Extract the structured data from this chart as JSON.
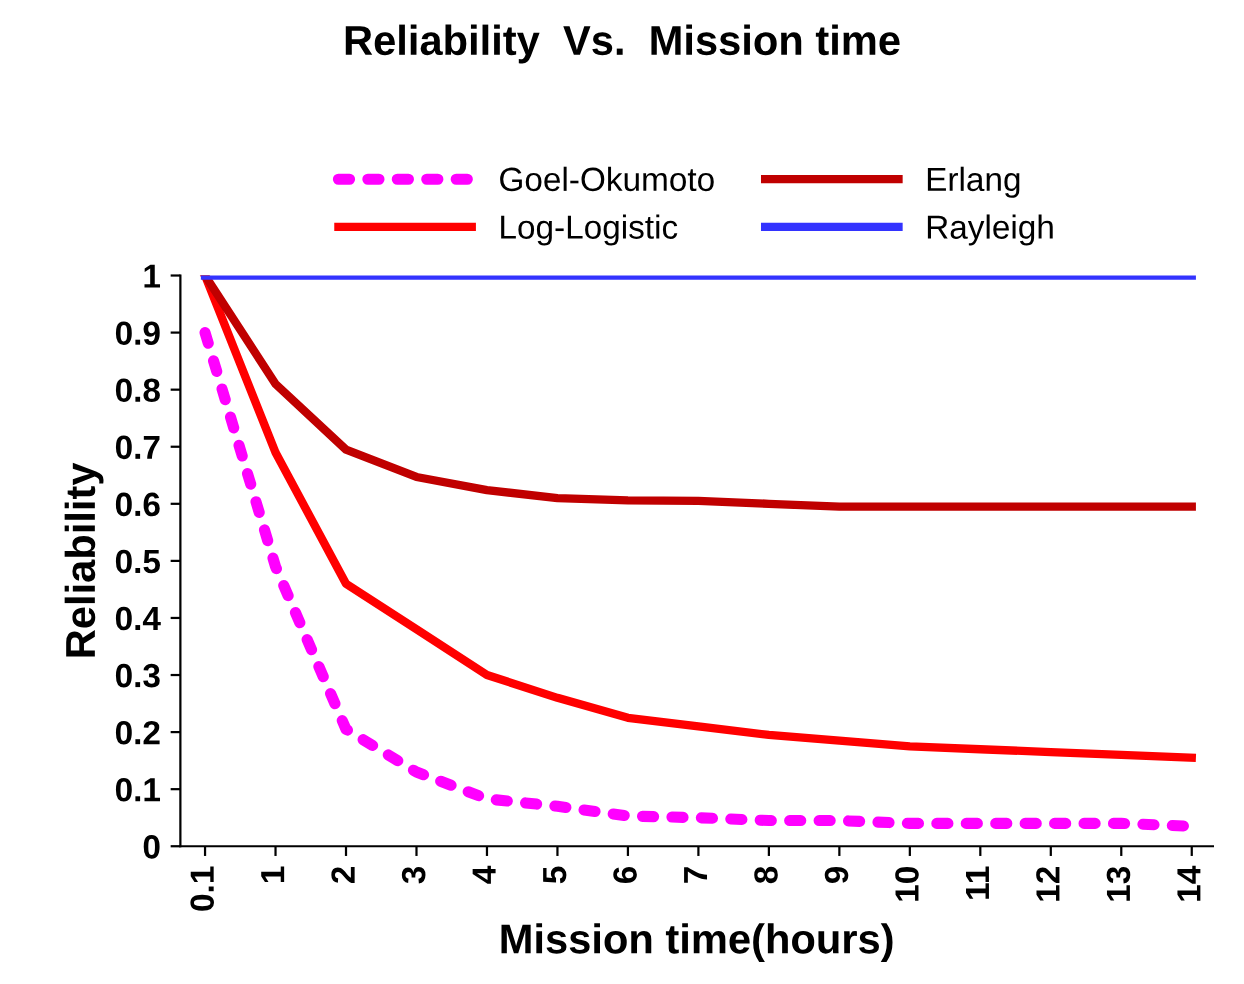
{
  "chart_data": {
    "type": "line",
    "title": "Reliability  Vs.  Mission time",
    "xlabel": "Mission time(hours)",
    "ylabel": "Reliability",
    "categories": [
      "0.1",
      "1",
      "2",
      "3",
      "4",
      "5",
      "6",
      "7",
      "8",
      "9",
      "10",
      "11",
      "12",
      "13",
      "14"
    ],
    "series": [
      {
        "name": "Goel-Okumoto",
        "color": "#ff00ff",
        "line_style": "dotted",
        "values": [
          0.9,
          0.49,
          0.205,
          0.13,
          0.083,
          0.07,
          0.053,
          0.05,
          0.045,
          0.045,
          0.04,
          0.04,
          0.04,
          0.04,
          0.035
        ]
      },
      {
        "name": "Log-Logistic",
        "color": "#ff0000",
        "line_style": "solid",
        "values": [
          1,
          0.69,
          0.46,
          0.38,
          0.3,
          0.26,
          0.225,
          0.21,
          0.195,
          0.185,
          0.175,
          0.17,
          0.165,
          0.16,
          0.155
        ]
      },
      {
        "name": "Erlang",
        "color": "#c00000",
        "line_style": "solid",
        "values": [
          1,
          0.81,
          0.695,
          0.647,
          0.624,
          0.61,
          0.606,
          0.605,
          0.6,
          0.595,
          0.595,
          0.595,
          0.595,
          0.595,
          0.595
        ]
      },
      {
        "name": "Rayleigh",
        "color": "#3333ff",
        "line_style": "solid",
        "values": [
          1,
          1,
          1,
          1,
          1,
          1,
          1,
          1,
          1,
          1,
          1,
          1,
          1,
          1,
          1
        ]
      }
    ],
    "ylim": [
      0,
      1
    ],
    "yticks": [
      0,
      0.1,
      0.2,
      0.3,
      0.4,
      0.5,
      0.6,
      0.7,
      0.8,
      0.9,
      1
    ],
    "grid": false,
    "legend": "top",
    "marker": "none"
  }
}
